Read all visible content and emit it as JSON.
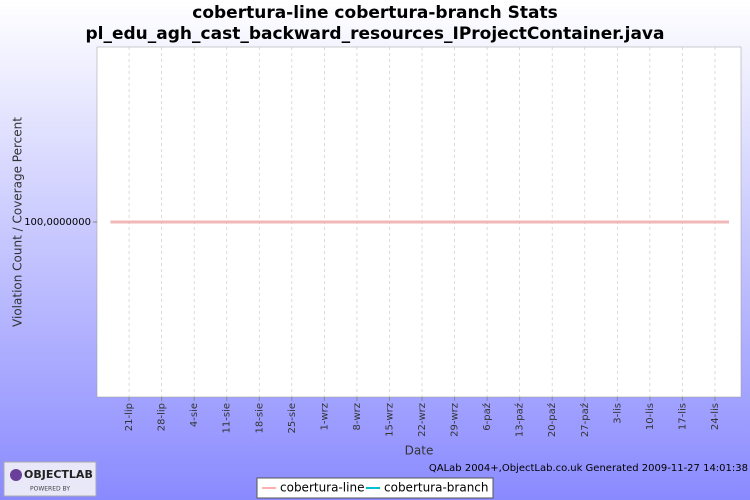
{
  "chart_data": {
    "type": "line",
    "title": "cobertura-line cobertura-branch  Stats",
    "subtitle": "pl_edu_agh_cast_backward_resources_IProjectContainer.java",
    "x_label": "Date",
    "y_label": "Violation Count / Coverage Percent",
    "footer": "QALab 2004+,ObjectLab.co.uk Generated 2009-11-27 14:01:38",
    "logo": {
      "name": "OBJECTLAB",
      "tagline": "POWERED BY"
    },
    "series": [
      {
        "name": "cobertura-line",
        "color": "#ffafaf",
        "x": [
          198,
          331
        ],
        "values": [
          100,
          100
        ]
      },
      {
        "name": "cobertura-branch",
        "color": "#00c0d0",
        "x": [
          198,
          331
        ],
        "values": [
          100,
          100
        ]
      }
    ],
    "xlim": [
      195.1,
      333.6
    ],
    "xticks": [
      {
        "value": 202,
        "label": "21-lip"
      },
      {
        "value": 209,
        "label": "28-lip"
      },
      {
        "value": 216,
        "label": "4-sie"
      },
      {
        "value": 223,
        "label": "11-sie"
      },
      {
        "value": 230,
        "label": "18-sie"
      },
      {
        "value": 237,
        "label": "25-sie"
      },
      {
        "value": 244,
        "label": "1-wrz"
      },
      {
        "value": 251,
        "label": "8-wrz"
      },
      {
        "value": 258,
        "label": "15-wrz"
      },
      {
        "value": 265,
        "label": "22-wrz"
      },
      {
        "value": 272,
        "label": "29-wrz"
      },
      {
        "value": 279,
        "label": "6-paź"
      },
      {
        "value": 286,
        "label": "13-paź"
      },
      {
        "value": 293,
        "label": "20-paź"
      },
      {
        "value": 300,
        "label": "27-paź"
      },
      {
        "value": 307,
        "label": "3-lis"
      },
      {
        "value": 314,
        "label": "10-lis"
      },
      {
        "value": 321,
        "label": "17-lis"
      },
      {
        "value": 328,
        "label": "24-lis"
      }
    ],
    "ylim": [
      99.5,
      100.5
    ],
    "yticks": [
      {
        "value": 100,
        "label": "100,0000000"
      }
    ],
    "grid": true
  }
}
